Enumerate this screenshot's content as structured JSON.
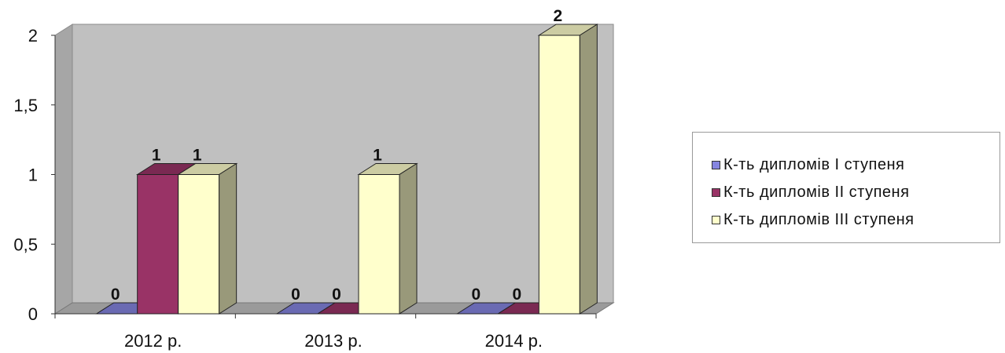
{
  "chart_data": {
    "type": "bar",
    "categories": [
      "2012 р.",
      "2013 р.",
      "2014 р."
    ],
    "series": [
      {
        "name": "К-ть  дипломів І ступеня",
        "values": [
          0,
          0,
          0
        ],
        "color": "#8585e0"
      },
      {
        "name": "К-ть дипломів ІІ ступеня",
        "values": [
          1,
          0,
          0
        ],
        "color": "#993366"
      },
      {
        "name": "К-ть дипломів ІІІ ступеня",
        "values": [
          1,
          1,
          2
        ],
        "color": "#ffffcc"
      }
    ],
    "y_ticks": [
      "0",
      "0,5",
      "1",
      "1,5",
      "2"
    ],
    "ylim": [
      0,
      2
    ],
    "data_labels": [
      [
        "0",
        "0",
        "0"
      ],
      [
        "1",
        "0",
        "0"
      ],
      [
        "1",
        "1",
        "2"
      ]
    ],
    "grid": false,
    "wall_color": "#c0c0c0",
    "legend_position": "right"
  }
}
